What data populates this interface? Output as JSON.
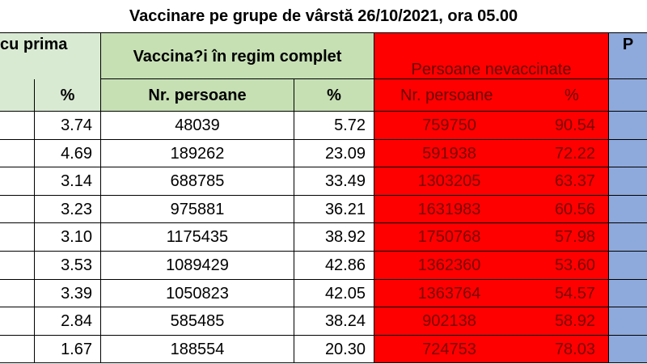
{
  "title": "Vaccinare pe grupe de vârstă 26/10/2021, ora 05.00",
  "headers": {
    "first_dose_group": "cu prima",
    "complete_group": "Vaccina?i în regim complet",
    "unvaccinated_group": "Persoane nevaccinate",
    "right_group_partial": "P",
    "pct": "%",
    "nr_persoane": "Nr. persoane"
  },
  "rows": [
    {
      "first_pct": "3.74",
      "complete_nr": "48039",
      "complete_pct": "5.72",
      "unvacc_nr": "759750",
      "unvacc_pct": "90.54"
    },
    {
      "first_pct": "4.69",
      "complete_nr": "189262",
      "complete_pct": "23.09",
      "unvacc_nr": "591938",
      "unvacc_pct": "72.22"
    },
    {
      "first_pct": "3.14",
      "complete_nr": "688785",
      "complete_pct": "33.49",
      "unvacc_nr": "1303205",
      "unvacc_pct": "63.37"
    },
    {
      "first_pct": "3.23",
      "complete_nr": "975881",
      "complete_pct": "36.21",
      "unvacc_nr": "1631983",
      "unvacc_pct": "60.56"
    },
    {
      "first_pct": "3.10",
      "complete_nr": "1175435",
      "complete_pct": "38.92",
      "unvacc_nr": "1750768",
      "unvacc_pct": "57.98"
    },
    {
      "first_pct": "3.53",
      "complete_nr": "1089429",
      "complete_pct": "42.86",
      "unvacc_nr": "1362360",
      "unvacc_pct": "53.60"
    },
    {
      "first_pct": "3.39",
      "complete_nr": "1050823",
      "complete_pct": "42.05",
      "unvacc_nr": "1363764",
      "unvacc_pct": "54.57"
    },
    {
      "first_pct": "2.84",
      "complete_nr": "585485",
      "complete_pct": "38.24",
      "unvacc_nr": "902138",
      "unvacc_pct": "58.92"
    },
    {
      "first_pct": "1.67",
      "complete_nr": "188554",
      "complete_pct": "20.30",
      "unvacc_nr": "724753",
      "unvacc_pct": "78.03"
    }
  ],
  "colors": {
    "first_dose_header": "#d9ead3",
    "complete_header": "#c6e0b4",
    "unvaccinated": "#ff0000",
    "right_group": "#8ea9db"
  }
}
